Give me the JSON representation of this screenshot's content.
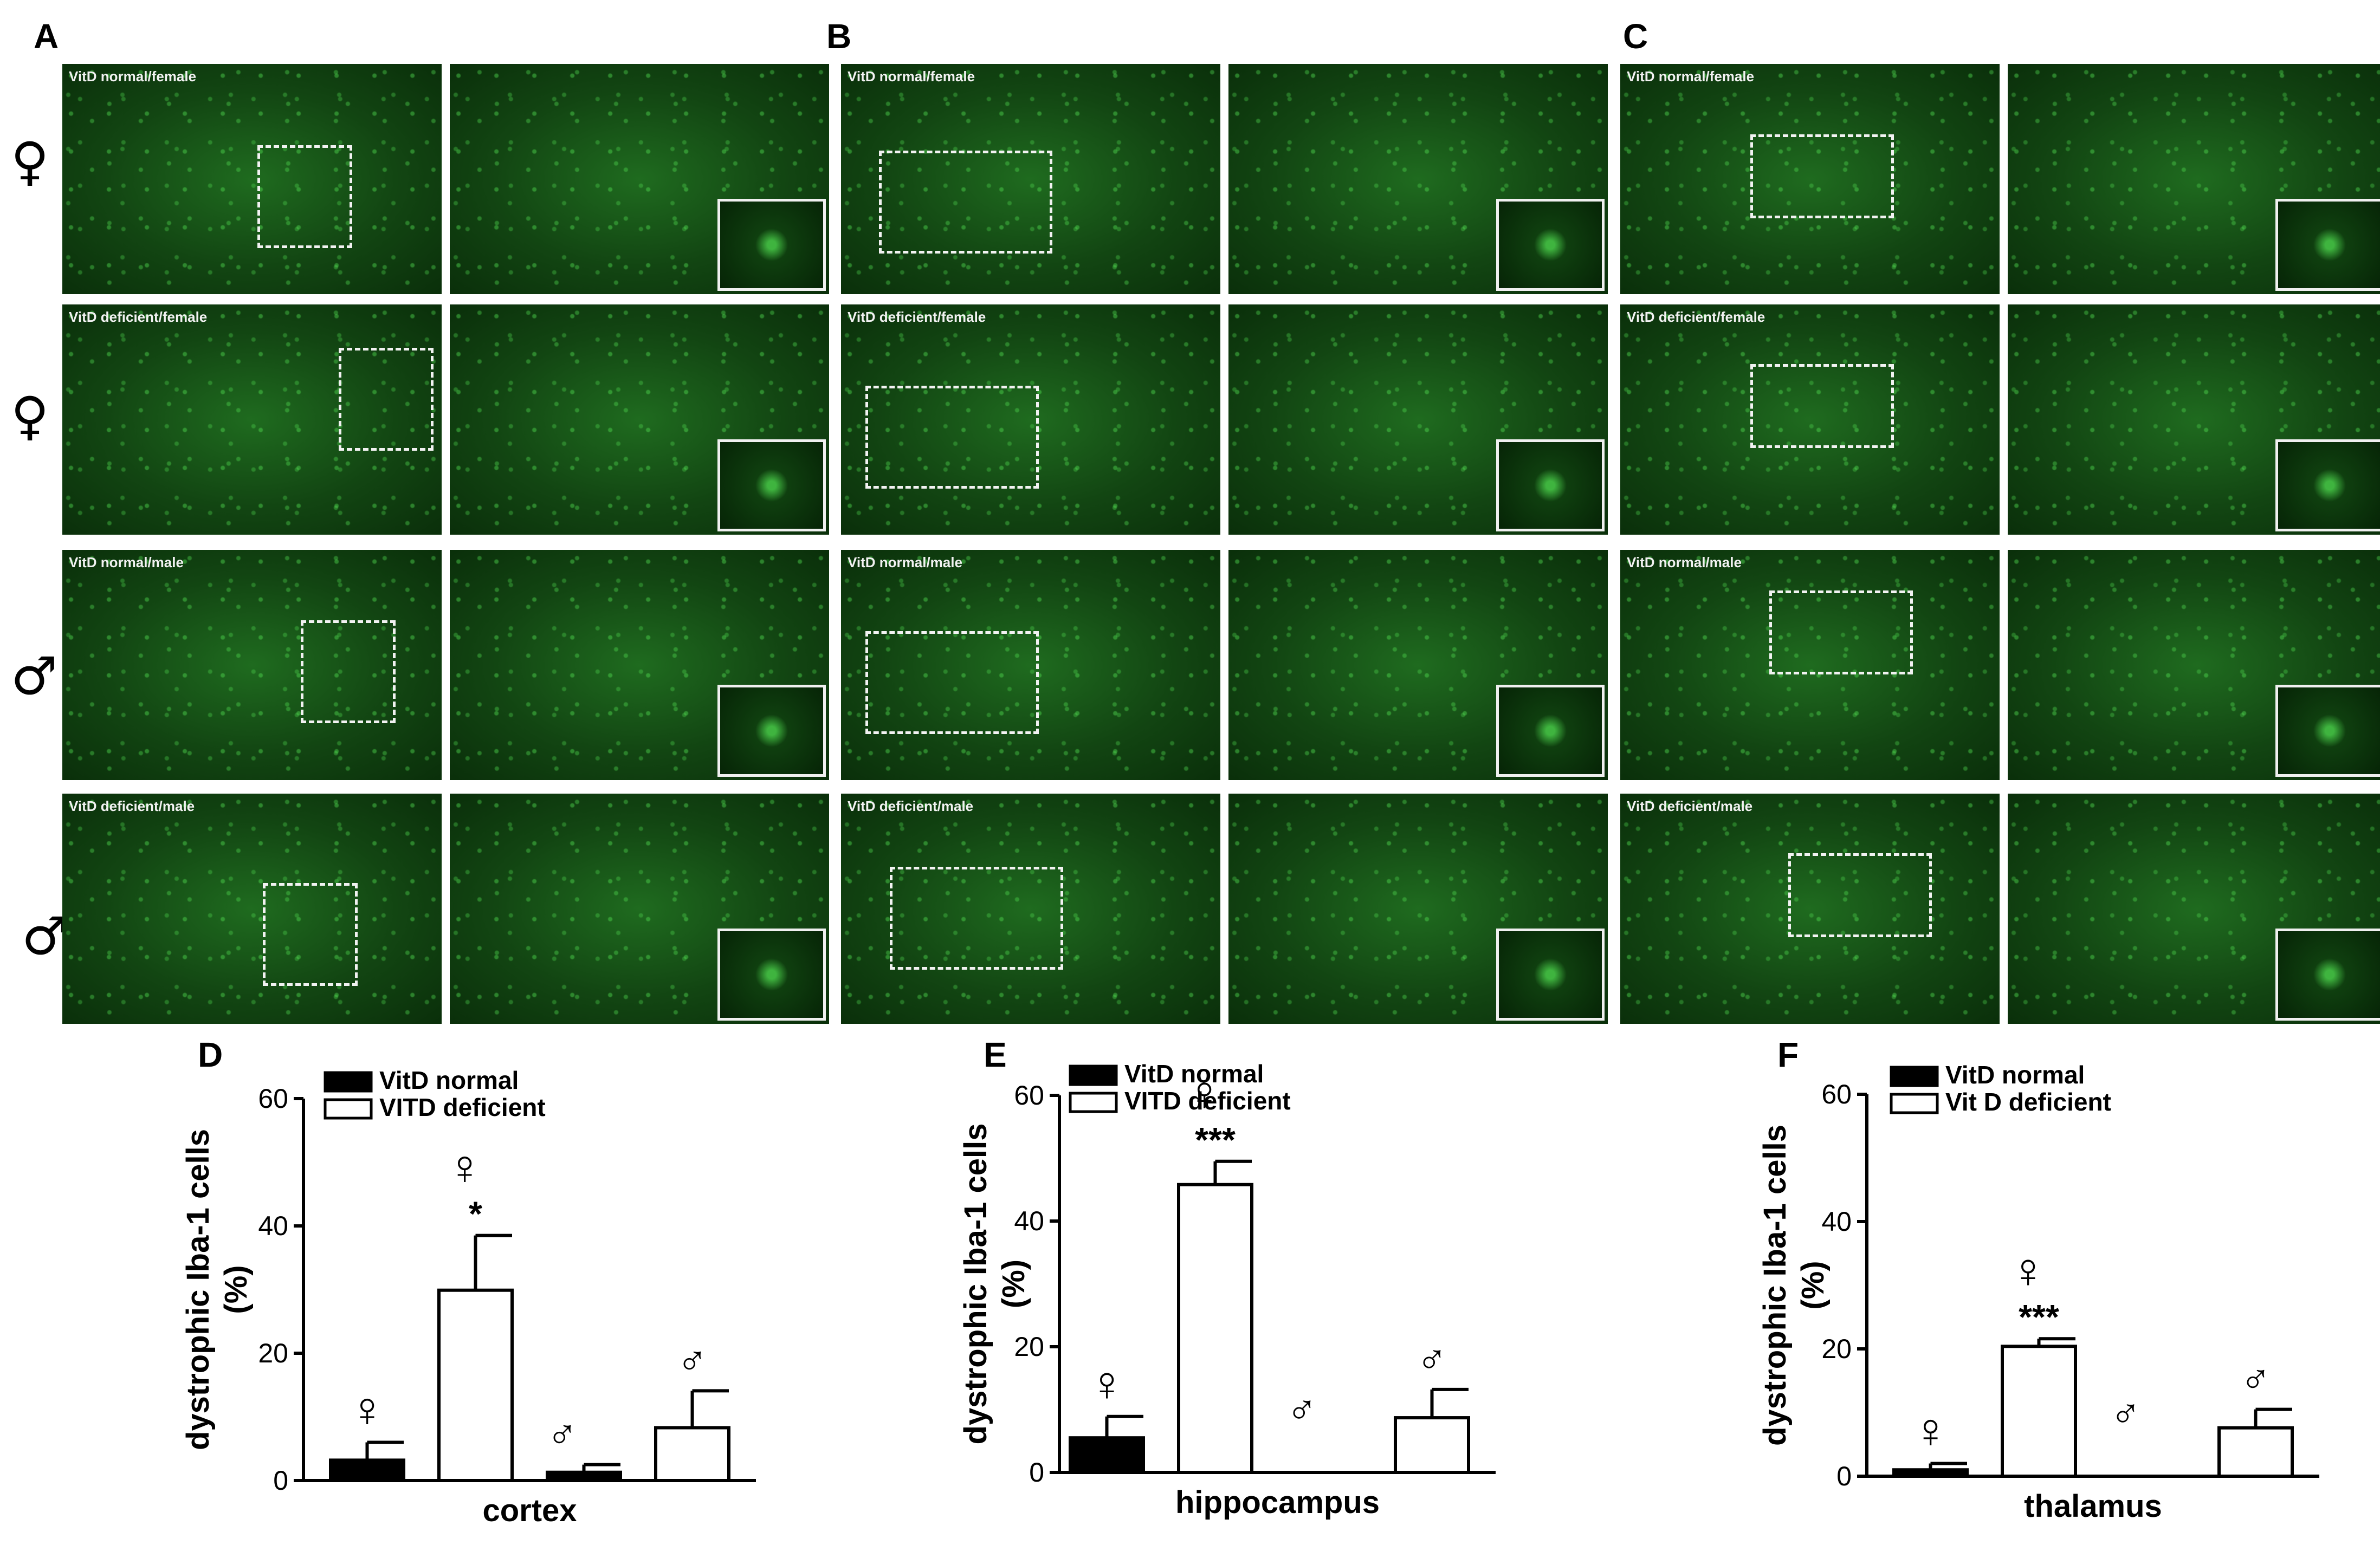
{
  "panel_letters": [
    "A",
    "B",
    "C",
    "D",
    "E",
    "F"
  ],
  "symbols": {
    "female": "♀",
    "male": "♂"
  },
  "row_symbols": [
    "♀",
    "♀",
    "♂",
    "♂"
  ],
  "micrograph_labels": {
    "A": [
      "VitD normal/female",
      "VitD deficient/female",
      "VitD normal/male",
      "VitD deficient/male"
    ],
    "B": [
      "VitD normal/female",
      "VitD deficient/female",
      "VitD normal/male",
      "VitD deficient/male"
    ],
    "C": [
      "VitD normal/female",
      "VitD deficient/female",
      "VitD normal/male",
      "VitD deficient/male"
    ]
  },
  "colors": {
    "micro_bg": "#124512",
    "bar_dark": "#000000",
    "bar_light": "#ffffff"
  },
  "chart_data": [
    {
      "type": "bar",
      "panel": "D",
      "xlabel": "cortex",
      "ylabel": "dystrophic Iba-1 cells (%)",
      "ylabel_lines": [
        "dystrophic Iba-1 cells",
        "(%)"
      ],
      "ylim": [
        0,
        60
      ],
      "yticks": [
        0,
        20,
        40,
        60
      ],
      "legend": [
        "VitD normal",
        "VITD deficient"
      ],
      "bars": [
        {
          "group": "female",
          "series": "VitD normal",
          "value": 3.2,
          "error": 2.8
        },
        {
          "group": "female",
          "series": "VITD deficient",
          "value": 29.9,
          "error": 8.6,
          "significance": "*"
        },
        {
          "group": "male",
          "series": "VitD normal",
          "value": 1.3,
          "error": 1.2
        },
        {
          "group": "male",
          "series": "VITD deficient",
          "value": 8.3,
          "error": 5.8
        }
      ]
    },
    {
      "type": "bar",
      "panel": "E",
      "xlabel": "hippocampus",
      "ylabel": "dystrophic Iba-1 cells (%)",
      "ylabel_lines": [
        "dystrophic Iba-1 cells",
        "(%)"
      ],
      "ylim": [
        0,
        60
      ],
      "yticks": [
        0,
        20,
        40,
        60
      ],
      "legend": [
        "VitD normal",
        "VITD deficient"
      ],
      "bars": [
        {
          "group": "female",
          "series": "VitD normal",
          "value": 5.5,
          "error": 3.4
        },
        {
          "group": "female",
          "series": "VITD deficient",
          "value": 45.8,
          "error": 3.7,
          "significance": "***"
        },
        {
          "group": "male",
          "series": "VitD normal",
          "value": 0,
          "error": 0
        },
        {
          "group": "male",
          "series": "VITD deficient",
          "value": 8.7,
          "error": 4.5
        }
      ]
    },
    {
      "type": "bar",
      "panel": "F",
      "xlabel": "thalamus",
      "ylabel": "dystrophic Iba-1 cells (%)",
      "ylabel_lines": [
        "dystrophic Iba-1 cells",
        "(%)"
      ],
      "ylim": [
        0,
        60
      ],
      "yticks": [
        0,
        20,
        40,
        60
      ],
      "legend": [
        "VitD normal",
        "Vit D deficient"
      ],
      "bars": [
        {
          "group": "female",
          "series": "VitD normal",
          "value": 1.0,
          "error": 1.0
        },
        {
          "group": "female",
          "series": "Vit D deficient",
          "value": 20.4,
          "error": 1.2,
          "significance": "***"
        },
        {
          "group": "male",
          "series": "VitD normal",
          "value": 0,
          "error": 0
        },
        {
          "group": "male",
          "series": "Vit D deficient",
          "value": 7.6,
          "error": 2.9
        }
      ]
    }
  ]
}
